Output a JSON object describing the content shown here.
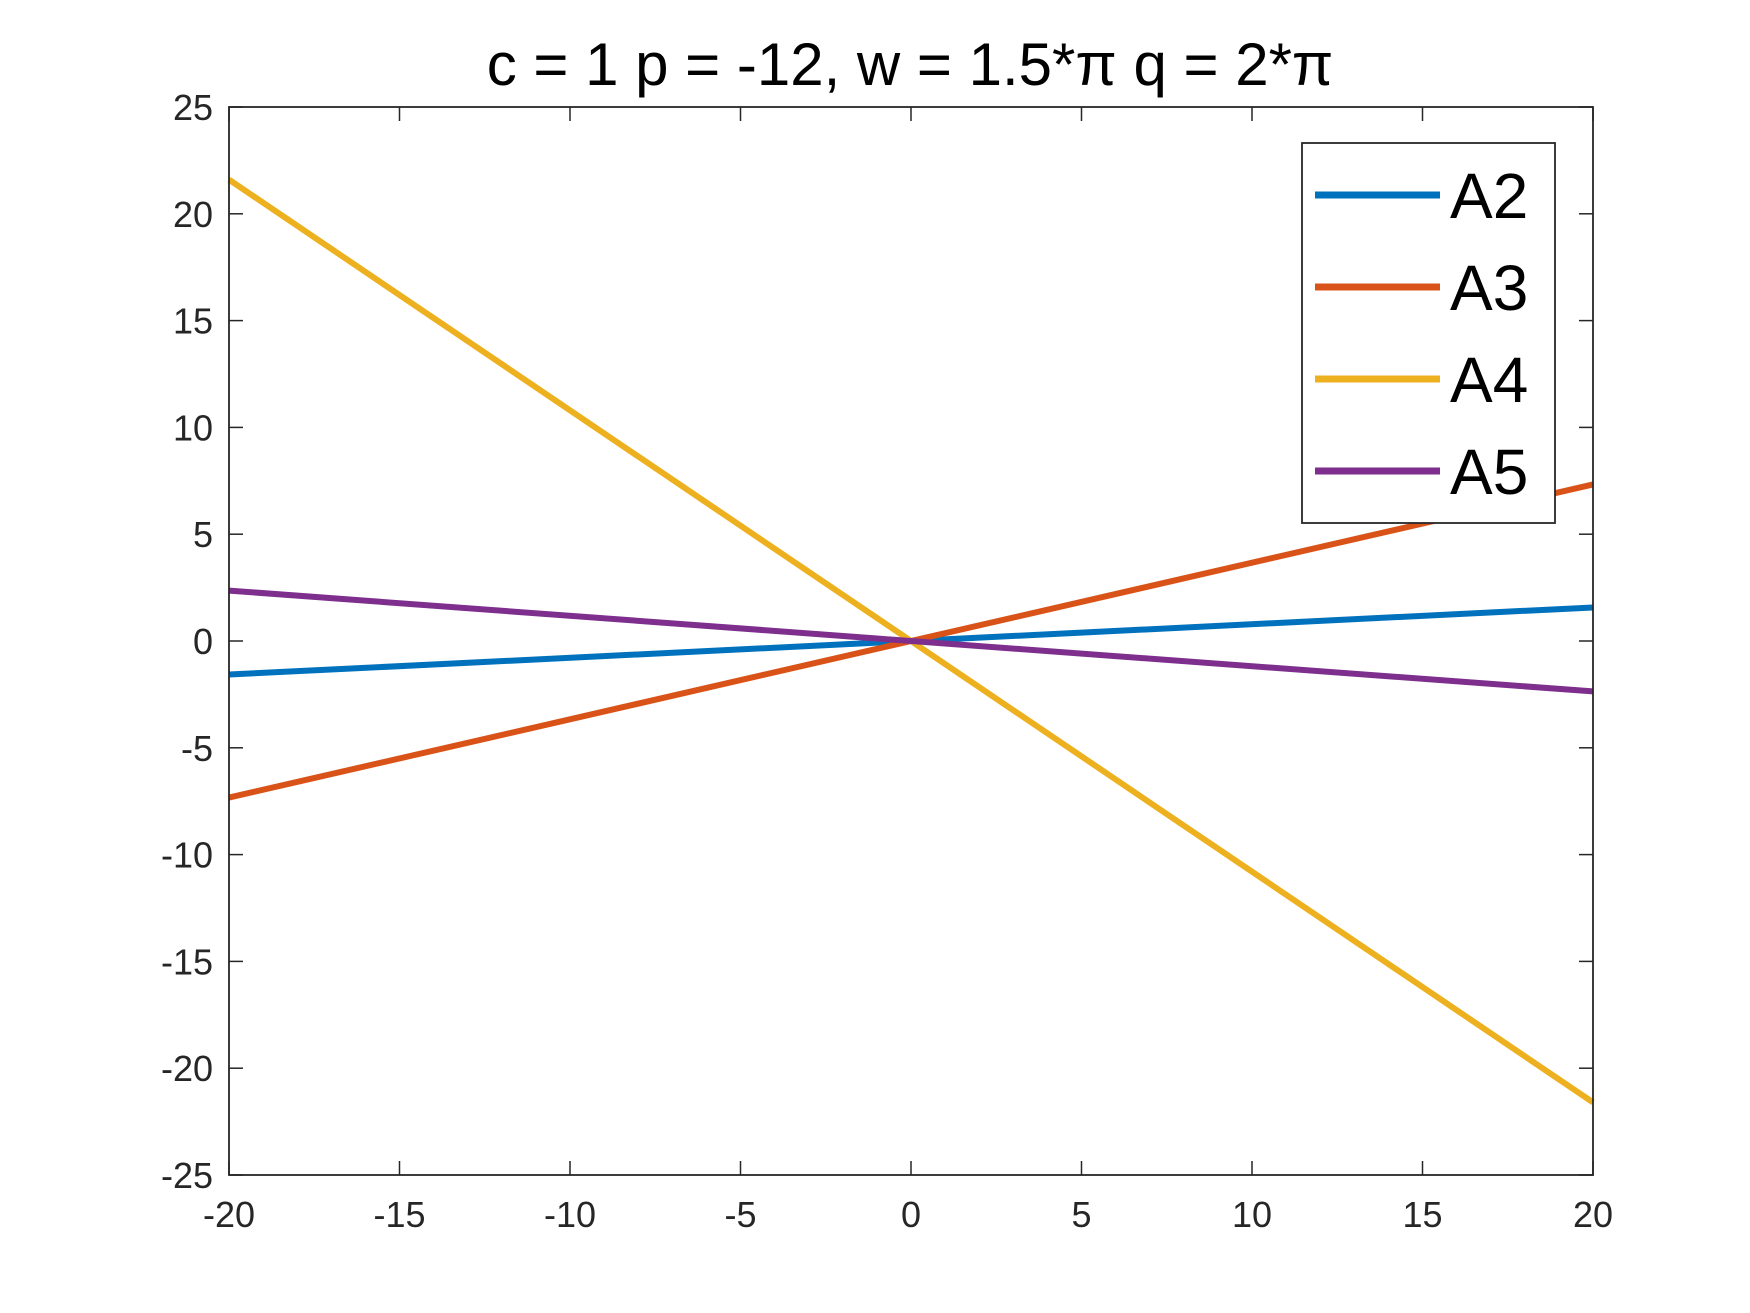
{
  "chart_data": {
    "type": "line",
    "title": "c = 1 p = -12, w = 1.5*π q = 2*π",
    "xlabel": "",
    "ylabel": "",
    "xlim": [
      -20,
      20
    ],
    "ylim": [
      -25,
      25
    ],
    "xticks": [
      -20,
      -15,
      -10,
      -5,
      0,
      5,
      10,
      15,
      20
    ],
    "yticks": [
      -25,
      -20,
      -15,
      -10,
      -5,
      0,
      5,
      10,
      15,
      20,
      25
    ],
    "xtick_labels": [
      "-20",
      "-15",
      "-10",
      "-5",
      "0",
      "5",
      "10",
      "15",
      "20"
    ],
    "ytick_labels": [
      "-25",
      "-20",
      "-15",
      "-10",
      "-5",
      "0",
      "5",
      "10",
      "15",
      "20",
      "25"
    ],
    "grid": false,
    "legend_position": "top-right",
    "x": [
      -20,
      20
    ],
    "series": [
      {
        "name": "A2",
        "color": "#0072BD",
        "values": [
          -1.57,
          1.57
        ]
      },
      {
        "name": "A3",
        "color": "#D95319",
        "values": [
          -7.33,
          7.33
        ]
      },
      {
        "name": "A4",
        "color": "#EDB120",
        "values": [
          21.6,
          -21.6
        ]
      },
      {
        "name": "A5",
        "color": "#7E2F8E",
        "values": [
          2.36,
          -2.36
        ]
      }
    ]
  }
}
